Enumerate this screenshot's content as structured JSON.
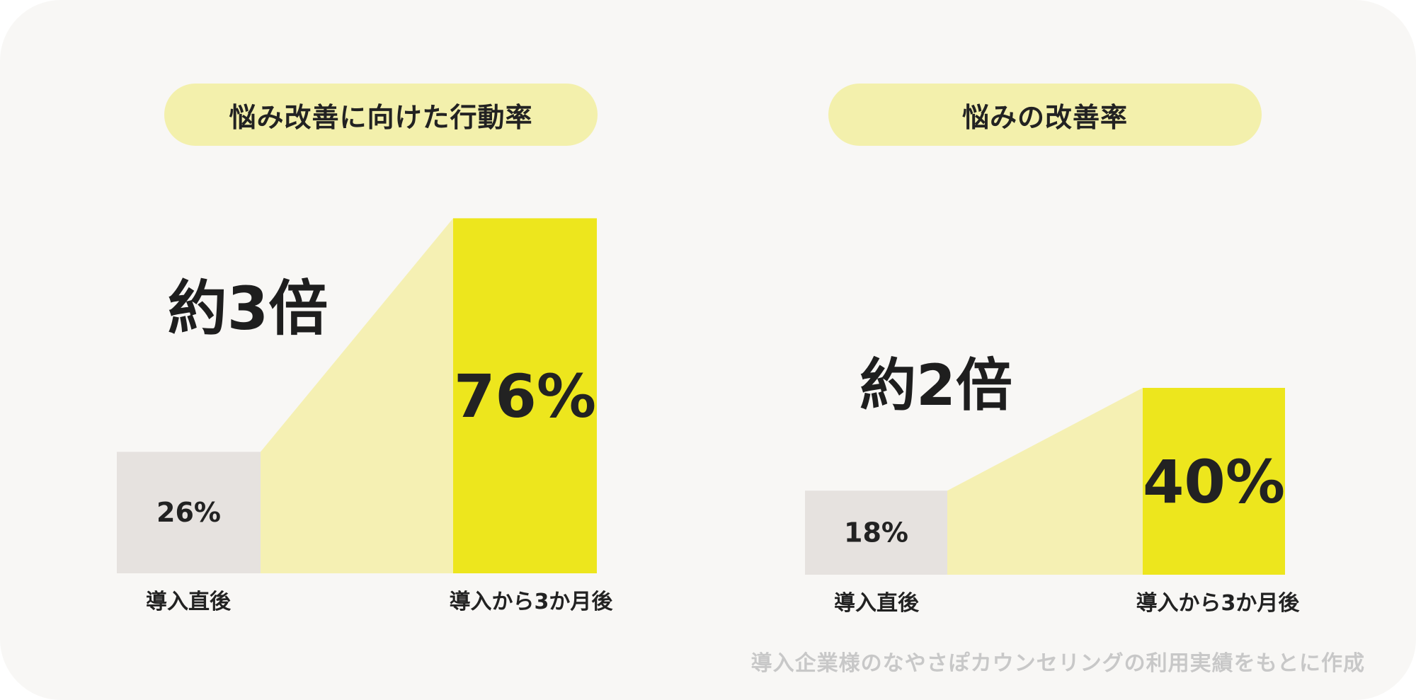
{
  "chart_data": [
    {
      "type": "bar",
      "title": "悩み改善に向けた行動率",
      "categories": [
        "導入直後",
        "導入から3か月後"
      ],
      "values": [
        26,
        76
      ],
      "value_labels": [
        "26%",
        "76%"
      ],
      "ratio_label": "約3倍",
      "ylim": [
        0,
        100
      ],
      "colors": {
        "before": "#e6e2df",
        "after": "#ede61d",
        "connector": "#f5f0b3"
      }
    },
    {
      "type": "bar",
      "title": "悩みの改善率",
      "categories": [
        "導入直後",
        "導入から3か月後"
      ],
      "values": [
        18,
        40
      ],
      "value_labels": [
        "18%",
        "40%"
      ],
      "ratio_label": "約2倍",
      "ylim": [
        0,
        100
      ],
      "colors": {
        "before": "#e6e2df",
        "after": "#ede61d",
        "connector": "#f5f0b3"
      }
    }
  ],
  "footnote": "導入企業様のなやさぽカウンセリングの利用実績をもとに作成"
}
